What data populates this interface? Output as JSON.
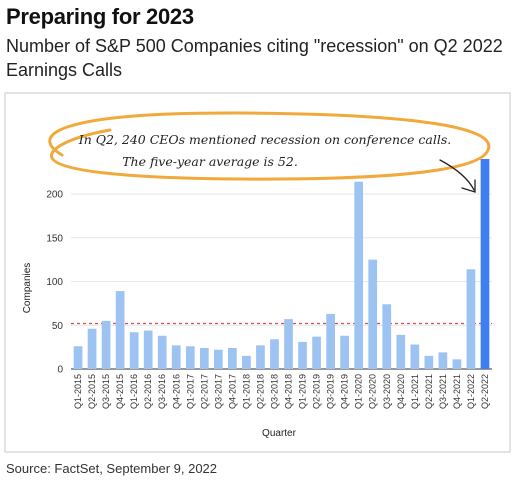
{
  "header": {
    "title": "Preparing for 2023",
    "subtitle": "Number of S&P 500 Companies citing \"recession\" on Q2 2022 Earnings Calls"
  },
  "annotation": {
    "line1": "In Q2, 240 CEOs mentioned recession on conference calls.",
    "line2": "The five-year average is 52."
  },
  "footer": {
    "source": "Source: FactSet, September 9, 2022"
  },
  "colors": {
    "bar": "#9dc3f2",
    "highlight": "#3d7ff0",
    "average_line": "#d94c4c",
    "callout": "#f2a93b"
  },
  "chart_data": {
    "type": "bar",
    "xlabel": "Quarter",
    "ylabel": "Companies",
    "ylim": [
      0,
      240
    ],
    "yticks": [
      0,
      50,
      100,
      150,
      200
    ],
    "reference_line": 52,
    "highlight": "Q2-2022",
    "categories": [
      "Q1-2015",
      "Q2-2015",
      "Q3-2015",
      "Q4-2015",
      "Q1-2016",
      "Q2-2016",
      "Q3-2016",
      "Q4-2016",
      "Q1-2017",
      "Q2-2017",
      "Q3-2017",
      "Q4-2017",
      "Q1-2018",
      "Q2-2018",
      "Q3-2018",
      "Q4-2018",
      "Q1-2019",
      "Q2-2019",
      "Q3-2019",
      "Q4-2019",
      "Q1-2020",
      "Q2-2020",
      "Q3-2020",
      "Q4-2020",
      "Q1-2021",
      "Q2-2021",
      "Q3-2021",
      "Q4-2021",
      "Q1-2022",
      "Q2-2022"
    ],
    "values": [
      26,
      46,
      55,
      89,
      42,
      44,
      38,
      27,
      26,
      24,
      22,
      24,
      15,
      27,
      34,
      57,
      31,
      37,
      63,
      38,
      214,
      125,
      74,
      39,
      28,
      15,
      19,
      11,
      114,
      240
    ]
  }
}
